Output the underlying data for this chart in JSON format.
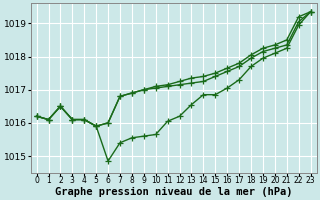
{
  "xlabel": "Graphe pression niveau de la mer (hPa)",
  "background_color": "#cce8e8",
  "grid_color": "#ffffff",
  "line_color": "#1a6b1a",
  "ylim": [
    1014.5,
    1019.6
  ],
  "xlim": [
    -0.5,
    23.5
  ],
  "yticks": [
    1015,
    1016,
    1017,
    1018,
    1019
  ],
  "xticks": [
    0,
    1,
    2,
    3,
    4,
    5,
    6,
    7,
    8,
    9,
    10,
    11,
    12,
    13,
    14,
    15,
    16,
    17,
    18,
    19,
    20,
    21,
    22,
    23
  ],
  "series": [
    [
      1016.2,
      1016.1,
      1016.5,
      1016.1,
      1016.1,
      1015.9,
      1014.85,
      1015.4,
      1015.55,
      1015.6,
      1015.65,
      1016.05,
      1016.2,
      1016.55,
      1016.85,
      1016.85,
      1017.05,
      1017.3,
      1017.7,
      1017.95,
      1018.1,
      1018.25,
      1018.95,
      1019.35
    ],
    [
      1016.2,
      1016.1,
      1016.5,
      1016.1,
      1016.1,
      1015.9,
      1016.0,
      1016.8,
      1016.9,
      1017.0,
      1017.05,
      1017.1,
      1017.15,
      1017.2,
      1017.25,
      1017.4,
      1017.55,
      1017.7,
      1017.95,
      1018.15,
      1018.25,
      1018.35,
      1019.05,
      1019.35
    ],
    [
      1016.2,
      1016.1,
      1016.5,
      1016.1,
      1016.1,
      1015.9,
      1016.0,
      1016.8,
      1016.9,
      1017.0,
      1017.1,
      1017.15,
      1017.25,
      1017.35,
      1017.4,
      1017.5,
      1017.65,
      1017.8,
      1018.05,
      1018.25,
      1018.35,
      1018.5,
      1019.2,
      1019.35
    ]
  ],
  "marker": "+",
  "markersize": 4,
  "linewidth": 1.0,
  "xlabel_fontsize": 7.5,
  "ytick_fontsize": 6.5,
  "xtick_fontsize": 5.5
}
